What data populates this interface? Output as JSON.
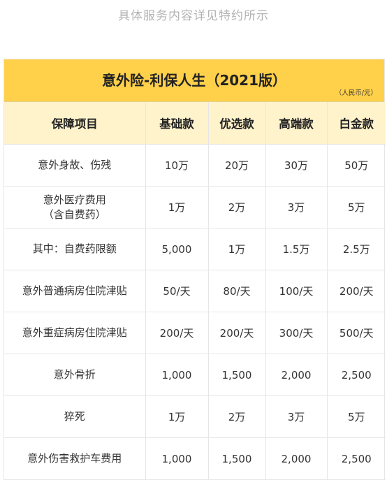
{
  "top_note": "具体服务内容详见特约所示",
  "table": {
    "title": "意外险-利保人生（2021版）",
    "unit": "（人民币/元）",
    "headers": [
      "保障项目",
      "基础款",
      "优选款",
      "高端款",
      "白金款"
    ],
    "rows": [
      {
        "item": "意外身故、伤残",
        "values": [
          "10万",
          "20万",
          "30万",
          "50万"
        ]
      },
      {
        "item": "意外医疗费用\n（含自费药）",
        "values": [
          "1万",
          "2万",
          "3万",
          "5万"
        ]
      },
      {
        "item": "其中：自费药限额",
        "values": [
          "5,000",
          "1万",
          "1.5万",
          "2.5万"
        ]
      },
      {
        "item": "意外普通病房住院津贴",
        "values": [
          "50/天",
          "80/天",
          "100/天",
          "200/天"
        ]
      },
      {
        "item": "意外重症病房住院津贴",
        "values": [
          "200/天",
          "200/天",
          "300/天",
          "500/天"
        ]
      },
      {
        "item": "意外骨折",
        "values": [
          "1,000",
          "1,500",
          "2,000",
          "2,500"
        ]
      },
      {
        "item": "猝死",
        "values": [
          "1万",
          "2万",
          "3万",
          "5万"
        ]
      },
      {
        "item": "意外伤害救护车费用",
        "values": [
          "1,000",
          "1,500",
          "2,000",
          "2,500"
        ]
      }
    ]
  }
}
